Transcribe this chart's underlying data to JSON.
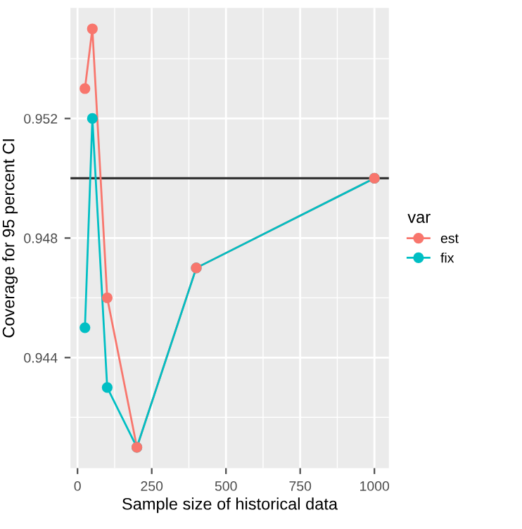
{
  "chart_data": {
    "type": "line",
    "xlabel": "Sample size of historical data",
    "ylabel": "Coverage for 95 percent CI",
    "legend_title": "var",
    "x": [
      25,
      50,
      100,
      200,
      400,
      1000
    ],
    "series": [
      {
        "name": "est",
        "color": "#f8766d",
        "values": [
          0.953,
          0.955,
          0.946,
          0.941,
          0.947,
          0.95
        ]
      },
      {
        "name": "fix",
        "color": "#00bfc4",
        "values": [
          0.945,
          0.952,
          0.943,
          0.941,
          0.947,
          0.95
        ]
      }
    ],
    "xlim": [
      -23.75,
      1048.75
    ],
    "ylim": [
      0.9403,
      0.9557
    ],
    "xticks": [
      0,
      250,
      500,
      750,
      1000
    ],
    "yticks": [
      0.944,
      0.948,
      0.952
    ],
    "ref_lines": [
      {
        "axis": "y",
        "value": 0.95,
        "color": "#333333"
      }
    ],
    "grid": true,
    "legend": "right",
    "marker": "circle",
    "line_style": "solid"
  }
}
